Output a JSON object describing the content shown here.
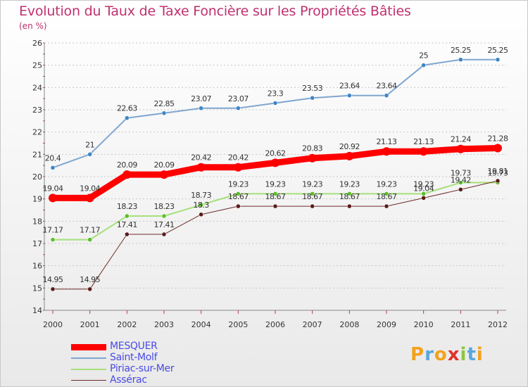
{
  "title": "Evolution du Taux de Taxe Foncière sur les Propriétés Bâties",
  "subtitle": "(en %)",
  "logo": {
    "text": "Proxiti",
    "colors": [
      "#f3a21c",
      "#5aa7dd",
      "#f3a21c",
      "#e2312b",
      "#8cc63f",
      "#5aa7dd",
      "#f3a21c"
    ]
  },
  "chart_data": {
    "type": "line",
    "title": "Evolution du Taux de Taxe Foncière sur les Propriétés Bâties",
    "ylabel": "(en %)",
    "xlabel": "",
    "x": [
      2000,
      2001,
      2002,
      2003,
      2004,
      2005,
      2006,
      2007,
      2008,
      2009,
      2010,
      2011,
      2012
    ],
    "ylim": [
      14,
      26
    ],
    "yticks": [
      14,
      15,
      16,
      17,
      18,
      19,
      20,
      21,
      22,
      23,
      24,
      25,
      26
    ],
    "grid": "horizontal",
    "legend_position": "bottom-left",
    "series": [
      {
        "name": "Saint-Molf",
        "color": "#7fa6d0",
        "marker": "#3d85c6",
        "width": 2,
        "values": [
          20.4,
          21,
          22.63,
          22.85,
          23.07,
          23.07,
          23.3,
          23.53,
          23.64,
          23.64,
          25,
          25.25,
          25.25
        ],
        "labels": [
          "20.4",
          "21",
          "22.63",
          "22.85",
          "23.07",
          "23.07",
          "23.3",
          "23.53",
          "23.64",
          "23.64",
          "25",
          "25.25",
          "25.25"
        ]
      },
      {
        "name": "Piriac-sur-Mer",
        "color": "#a6e07a",
        "marker": "#5cbf2a",
        "width": 2,
        "values": [
          17.17,
          17.17,
          18.23,
          18.23,
          18.73,
          19.23,
          19.23,
          19.23,
          19.23,
          19.23,
          19.23,
          19.73,
          19.73
        ],
        "labels": [
          "17.17",
          "17.17",
          "18.23",
          "18.23",
          "18.73",
          "19.23",
          "19.23",
          "19.23",
          "19.23",
          "19.23",
          "19.23",
          "19.73",
          "19.73"
        ]
      },
      {
        "name": "Assérac",
        "color": "#6e2a2a",
        "marker": "#5a1a1a",
        "width": 1,
        "values": [
          14.95,
          14.95,
          17.41,
          17.41,
          18.3,
          18.67,
          18.67,
          18.67,
          18.67,
          18.67,
          19.04,
          19.42,
          19.81
        ],
        "labels": [
          "14.95",
          "14.95",
          "17.41",
          "17.41",
          "18.3",
          "18.67",
          "18.67",
          "18.67",
          "18.67",
          "18.67",
          "19.04",
          "19.42",
          "19.81"
        ]
      },
      {
        "name": "MESQUER",
        "color": "#ff0000",
        "marker": "#ff0000",
        "width": 9,
        "values": [
          19.04,
          19.04,
          20.09,
          20.09,
          20.42,
          20.42,
          20.62,
          20.83,
          20.92,
          21.13,
          21.13,
          21.24,
          21.28
        ],
        "labels": [
          "19.04",
          "19.04",
          "20.09",
          "20.09",
          "20.42",
          "20.42",
          "20.62",
          "20.83",
          "20.92",
          "21.13",
          "21.13",
          "21.24",
          "21.28"
        ]
      }
    ],
    "legend": [
      "MESQUER",
      "Saint-Molf",
      "Piriac-sur-Mer",
      "Assérac"
    ]
  }
}
